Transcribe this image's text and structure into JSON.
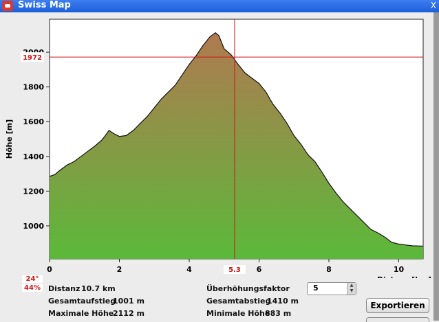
{
  "window": {
    "title": "Swiss Map",
    "close_glyph": "X"
  },
  "chart_data": {
    "type": "area",
    "xlabel": "Distanz [km]",
    "ylabel": "Höhe [m]",
    "xlim": [
      0,
      10.7
    ],
    "ylim": [
      810,
      2190
    ],
    "xticks": [
      0,
      2,
      4,
      6,
      8,
      10
    ],
    "yticks": [
      1000,
      1200,
      1400,
      1600,
      1800,
      2000
    ],
    "series": [
      {
        "x": [
          0,
          0.15,
          0.3,
          0.5,
          0.7,
          0.9,
          1.1,
          1.3,
          1.5,
          1.6,
          1.7,
          1.85,
          2.0,
          2.2,
          2.4,
          2.6,
          2.8,
          3.0,
          3.2,
          3.4,
          3.6,
          3.8,
          4.0,
          4.2,
          4.4,
          4.6,
          4.75,
          4.85,
          5.0,
          5.2,
          5.4,
          5.6,
          5.8,
          6.0,
          6.2,
          6.4,
          6.6,
          6.8,
          7.0,
          7.2,
          7.4,
          7.6,
          7.8,
          8.0,
          8.2,
          8.4,
          8.6,
          8.8,
          9.0,
          9.2,
          9.4,
          9.6,
          9.8,
          10.0,
          10.2,
          10.4,
          10.7
        ],
        "y": [
          1285,
          1295,
          1320,
          1350,
          1370,
          1400,
          1430,
          1460,
          1495,
          1520,
          1550,
          1530,
          1515,
          1520,
          1550,
          1590,
          1630,
          1680,
          1730,
          1770,
          1810,
          1870,
          1930,
          1980,
          2040,
          2090,
          2112,
          2095,
          2020,
          1985,
          1930,
          1880,
          1850,
          1820,
          1770,
          1700,
          1650,
          1590,
          1520,
          1470,
          1410,
          1370,
          1310,
          1245,
          1190,
          1140,
          1100,
          1060,
          1020,
          980,
          960,
          935,
          905,
          895,
          890,
          885,
          883
        ]
      }
    ],
    "cursor": {
      "x": 5.3,
      "y": 1972,
      "x_label": "5.3",
      "y_label": "1972"
    }
  },
  "info": {
    "angle": "24°",
    "percent": "44%",
    "distanz_label": "Distanz",
    "distanz_value": "10.7 km",
    "gesamtaufstieg_label": "Gesamtaufstieg",
    "gesamtaufstieg_value": "1001 m",
    "max_hoehe_label": "Maximale Höhe",
    "max_hoehe_value": "2112 m",
    "ueberhoehung_label": "Überhöhungsfaktor",
    "ueberhoehung_value": "5",
    "gesamtabstieg_label": "Gesamtabstieg",
    "gesamtabstieg_value": "1410 m",
    "min_hoehe_label": "Minimale Höhe",
    "min_hoehe_value": "883 m"
  },
  "buttons": {
    "export": "Exportieren"
  },
  "colors": {
    "fill_top": "#b07a50",
    "fill_bottom": "#5bb93a",
    "crosshair": "#d01515"
  }
}
